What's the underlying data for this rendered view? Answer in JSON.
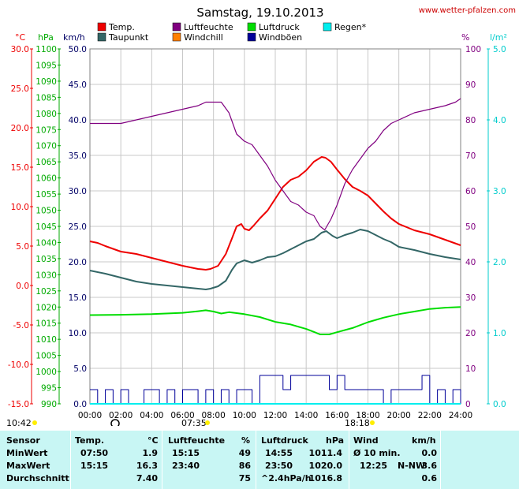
{
  "header": {
    "title": "Samstag, 19.10.2013",
    "site": "www.wetter-pfalzen.com"
  },
  "legend": [
    {
      "label": "Temp.",
      "color": "#ee0000"
    },
    {
      "label": "Luftfeuchte",
      "color": "#800080"
    },
    {
      "label": "Luftdruck",
      "color": "#00dd00"
    },
    {
      "label": "Regen*",
      "color": "#00eeee"
    },
    {
      "label": "Taupunkt",
      "color": "#336666"
    },
    {
      "label": "Windchill",
      "color": "#ff8000"
    },
    {
      "label": "Windböen",
      "color": "#000099"
    }
  ],
  "axis_units": {
    "temp": "°C",
    "pressure": "hPa",
    "wind": "km/h",
    "humidity": "%",
    "rain": "l/m²"
  },
  "axes": {
    "temp_ticks": [
      "30.0",
      "25.0",
      "20.0",
      "15.0",
      "10.0",
      "5.0",
      "0.0",
      "-5.0",
      "-10.0",
      "-15.0"
    ],
    "pressure_ticks": [
      "1100",
      "1095",
      "1090",
      "1085",
      "1080",
      "1075",
      "1070",
      "1065",
      "1060",
      "1055",
      "1050",
      "1045",
      "1040",
      "1035",
      "1030",
      "1025",
      "1020",
      "1015",
      "1010",
      "1005",
      "1000",
      "995",
      "990"
    ],
    "wind_ticks": [
      "50.0",
      "45.0",
      "40.0",
      "35.0",
      "30.0",
      "25.0",
      "20.0",
      "15.0",
      "10.0",
      "5.0",
      "0.0"
    ],
    "humidity_ticks": [
      "100",
      "90",
      "80",
      "70",
      "60",
      "50",
      "40",
      "30",
      "20",
      "10",
      "0"
    ],
    "rain_ticks": [
      "5.0",
      "4.0",
      "3.0",
      "2.0",
      "1.0",
      "0.0"
    ],
    "time_ticks": [
      "00:00",
      "02:00",
      "04:00",
      "06:00",
      "08:00",
      "10:00",
      "12:00",
      "14:00",
      "16:00",
      "18:00",
      "20:00",
      "22:00",
      "24:00"
    ]
  },
  "markers": {
    "moonrise": "10:42",
    "sunrise": "07:35",
    "sunset": "18:18"
  },
  "colors": {
    "temp": "#ee0000",
    "humidity": "#800080",
    "pressure": "#00dd00",
    "rain": "#00eeee",
    "dewpoint": "#336666",
    "gust": "#000099",
    "axis_temp": "#ee0000",
    "axis_pressure": "#00aa00",
    "axis_wind": "#000066",
    "axis_humidity": "#800080",
    "axis_rain": "#00cccc",
    "table_bg": "#c8f6f4"
  },
  "chart_data": {
    "type": "line",
    "title": "Samstag, 19.10.2013",
    "x_unit": "hours",
    "xlim": [
      0,
      24
    ],
    "scales": {
      "temp": [
        -15,
        30
      ],
      "pressure": [
        990,
        1100
      ],
      "wind": [
        0,
        50
      ],
      "humidity": [
        0,
        100
      ],
      "rain": [
        0,
        5
      ]
    },
    "series": [
      {
        "name": "Temp.",
        "scale": "temp",
        "x": [
          0,
          0.5,
          1,
          2,
          3,
          4,
          5,
          6,
          7,
          7.5,
          7.8,
          8.3,
          8.8,
          9.2,
          9.5,
          9.8,
          10,
          10.3,
          10.6,
          11,
          11.5,
          12,
          12.5,
          13,
          13.5,
          14,
          14.5,
          15,
          15.25,
          15.6,
          16,
          16.5,
          17,
          17.5,
          18,
          18.5,
          19,
          19.5,
          20,
          21,
          22,
          23,
          24
        ],
        "y": [
          5.6,
          5.4,
          5.0,
          4.3,
          4.0,
          3.5,
          3.0,
          2.5,
          2.1,
          2.0,
          2.1,
          2.5,
          4.0,
          6.0,
          7.5,
          7.8,
          7.2,
          7.0,
          7.6,
          8.5,
          9.5,
          11.0,
          12.5,
          13.4,
          13.8,
          14.6,
          15.7,
          16.3,
          16.2,
          15.7,
          14.7,
          13.5,
          12.5,
          12.0,
          11.4,
          10.4,
          9.4,
          8.5,
          7.8,
          7.0,
          6.5,
          5.8,
          5.1
        ]
      },
      {
        "name": "Taupunkt",
        "scale": "temp",
        "x": [
          0,
          1,
          2,
          3,
          4,
          5,
          6,
          7,
          7.5,
          7.8,
          8.3,
          8.8,
          9.2,
          9.5,
          10,
          10.5,
          11,
          11.5,
          12,
          12.5,
          13,
          13.5,
          14,
          14.5,
          15,
          15.3,
          15.7,
          16,
          16.5,
          17,
          17.5,
          18,
          18.5,
          19,
          19.5,
          20,
          21,
          22,
          23,
          24
        ],
        "y": [
          1.9,
          1.5,
          1.0,
          0.5,
          0.2,
          0.0,
          -0.2,
          -0.4,
          -0.5,
          -0.4,
          -0.1,
          0.6,
          2.0,
          2.8,
          3.2,
          2.9,
          3.2,
          3.6,
          3.7,
          4.1,
          4.6,
          5.1,
          5.6,
          5.9,
          6.7,
          6.9,
          6.3,
          6.0,
          6.4,
          6.7,
          7.1,
          6.9,
          6.4,
          5.9,
          5.5,
          4.9,
          4.5,
          4.0,
          3.6,
          3.3
        ]
      },
      {
        "name": "Luftfeuchte",
        "scale": "humidity",
        "x": [
          0,
          1,
          2,
          3,
          4,
          5,
          6,
          7,
          7.5,
          8,
          8.5,
          9,
          9.5,
          10,
          10.5,
          11,
          11.5,
          12,
          12.5,
          13,
          13.5,
          14,
          14.5,
          14.9,
          15.2,
          15.6,
          16,
          16.5,
          17,
          17.5,
          18,
          18.5,
          19,
          19.5,
          20,
          21,
          22,
          23,
          23.67,
          24
        ],
        "y": [
          79,
          79,
          79,
          80,
          81,
          82,
          83,
          84,
          85,
          85,
          85,
          82,
          76,
          74,
          73,
          70,
          67,
          63,
          60,
          57,
          56,
          54,
          53,
          50,
          49,
          52,
          56,
          62,
          66,
          69,
          72,
          74,
          77,
          79,
          80,
          82,
          83,
          84,
          85,
          86
        ]
      },
      {
        "name": "Luftdruck",
        "scale": "pressure",
        "x": [
          0,
          2,
          4,
          6,
          7,
          7.5,
          8,
          8.5,
          9,
          9.5,
          10,
          11,
          12,
          13,
          14,
          14.5,
          14.9,
          15.5,
          16,
          17,
          18,
          19,
          20,
          21,
          22,
          23,
          24
        ],
        "y": [
          1017.5,
          1017.6,
          1017.8,
          1018.2,
          1018.7,
          1019.0,
          1018.6,
          1018.0,
          1018.4,
          1018.1,
          1017.8,
          1016.9,
          1015.4,
          1014.6,
          1013.2,
          1012.3,
          1011.5,
          1011.5,
          1012.2,
          1013.5,
          1015.3,
          1016.7,
          1017.8,
          1018.6,
          1019.4,
          1019.8,
          1020.0
        ]
      },
      {
        "name": "Windböen",
        "scale": "wind",
        "x": [
          0,
          0.5,
          1,
          1.5,
          2,
          2.5,
          3,
          3.5,
          4,
          4.5,
          5,
          5.5,
          6,
          6.5,
          7,
          7.5,
          8,
          8.5,
          9,
          9.5,
          10,
          10.5,
          11,
          11.5,
          12,
          12.5,
          13,
          13.5,
          14,
          14.5,
          15,
          15.5,
          16,
          16.5,
          17,
          17.5,
          18,
          18.5,
          19,
          19.5,
          20,
          20.5,
          21,
          21.5,
          22,
          22.5,
          23,
          23.5,
          24
        ],
        "y": [
          2.0,
          0.0,
          2.0,
          0.0,
          2.0,
          0.0,
          0.0,
          2.0,
          2.0,
          0.0,
          2.0,
          0.0,
          2.0,
          2.0,
          0.0,
          2.0,
          0.0,
          2.0,
          0.0,
          2.0,
          2.0,
          0.0,
          4.0,
          4.0,
          4.0,
          2.0,
          4.0,
          4.0,
          4.0,
          4.0,
          4.0,
          2.0,
          4.0,
          2.0,
          2.0,
          2.0,
          2.0,
          2.0,
          0.0,
          2.0,
          2.0,
          2.0,
          2.0,
          4.0,
          0.0,
          2.0,
          0.0,
          2.0,
          0.0
        ]
      },
      {
        "name": "Regen*",
        "scale": "rain",
        "x": [
          0,
          24
        ],
        "y": [
          0.0,
          0.0
        ]
      }
    ]
  },
  "table": {
    "headers": {
      "sensor": "Sensor",
      "temp": "Temp.",
      "temp_unit": "°C",
      "humidity": "Luftfeuchte",
      "humidity_unit": "%",
      "pressure": "Luftdruck",
      "pressure_unit": "hPa",
      "wind": "Wind",
      "wind_unit": "km/h"
    },
    "rows": [
      {
        "label": "MinWert",
        "temp_time": "07:50",
        "temp": "1.9",
        "hum_time": "15:15",
        "hum": "49",
        "press_time": "14:55",
        "press": "1011.4",
        "wind_label": "Ø 10 min.",
        "wind": "0.0"
      },
      {
        "label": "MaxWert",
        "temp_time": "15:15",
        "temp": "16.3",
        "hum_time": "23:40",
        "hum": "86",
        "press_time": "23:50",
        "press": "1020.0",
        "wind_label": "12:25",
        "wind_dir": "N-NW",
        "wind": "3.6"
      },
      {
        "label": "Durchschnitt",
        "temp_time": "",
        "temp": "7.40",
        "hum_time": "",
        "hum": "75",
        "press_time": "^2.4hPa/h",
        "press": "1016.8",
        "wind_label": "",
        "wind": "0.6"
      }
    ]
  }
}
